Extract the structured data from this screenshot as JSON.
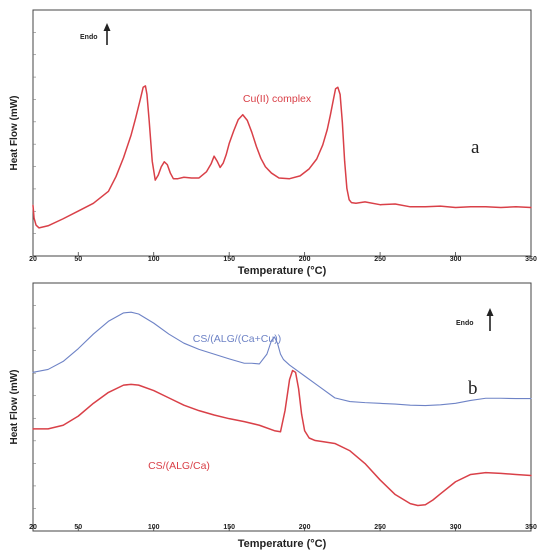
{
  "colors": {
    "red": "#d94048",
    "blue": "#6e83c6"
  },
  "chart_data": [
    {
      "type": "line",
      "panel_label": "a",
      "xlabel": "Temperature (°C)",
      "ylabel": "Heat Flow (mW)",
      "endo_label": "Endo",
      "xlim": [
        20,
        350
      ],
      "xticks": [
        "20",
        "50",
        "100",
        "150",
        "200",
        "250",
        "300",
        "350"
      ],
      "series": [
        {
          "name": "Cu(II) complex",
          "color": "#d94048",
          "x": [
            20,
            20.7,
            22,
            24,
            30,
            40,
            50,
            60,
            70,
            75,
            80,
            85,
            88,
            91,
            93,
            94.5,
            95.5,
            97,
            99,
            101,
            103,
            105,
            107,
            109,
            111,
            113,
            116,
            120,
            125,
            130,
            135,
            138,
            140,
            142,
            144,
            146,
            148,
            150,
            153,
            156,
            159,
            162,
            165,
            168,
            171,
            174,
            178,
            183,
            190,
            197,
            203,
            208,
            212,
            215,
            217,
            219,
            220.5,
            222,
            223.5,
            225,
            226.5,
            228,
            229.5,
            231,
            234,
            240,
            250,
            260,
            270,
            280,
            290,
            300,
            310,
            320,
            330,
            340,
            350
          ],
          "y": [
            0.42,
            0.24,
            0.14,
            0.1,
            0.13,
            0.23,
            0.34,
            0.45,
            0.62,
            0.83,
            1.1,
            1.42,
            1.66,
            1.92,
            2.1,
            2.12,
            2.0,
            1.62,
            1.05,
            0.78,
            0.85,
            0.97,
            1.04,
            1.0,
            0.88,
            0.8,
            0.8,
            0.82,
            0.81,
            0.81,
            0.9,
            1.01,
            1.12,
            1.05,
            0.96,
            1.02,
            1.14,
            1.3,
            1.48,
            1.64,
            1.71,
            1.63,
            1.46,
            1.26,
            1.09,
            0.97,
            0.88,
            0.81,
            0.8,
            0.84,
            0.94,
            1.08,
            1.28,
            1.5,
            1.7,
            1.92,
            2.08,
            2.1,
            2.0,
            1.6,
            1.05,
            0.66,
            0.5,
            0.46,
            0.45,
            0.47,
            0.43,
            0.44,
            0.4,
            0.4,
            0.41,
            0.39,
            0.4,
            0.4,
            0.39,
            0.4,
            0.39
          ]
        }
      ]
    },
    {
      "type": "line",
      "panel_label": "b",
      "xlabel": "Temperature (°C)",
      "ylabel": "Heat Flow (mW)",
      "endo_label": "Endo",
      "xlim": [
        20,
        350
      ],
      "xticks": [
        "20",
        "50",
        "100",
        "150",
        "200",
        "250",
        "300",
        "350"
      ],
      "series": [
        {
          "name": "CS/(ALG/(Ca+Cu))",
          "color": "#6e83c6",
          "x": [
            20,
            30,
            40,
            50,
            60,
            70,
            80,
            85,
            90,
            100,
            110,
            120,
            130,
            140,
            150,
            160,
            165,
            170,
            175,
            178,
            180,
            182,
            184,
            186,
            190,
            200,
            210,
            220,
            230,
            240,
            250,
            260,
            270,
            280,
            290,
            300,
            310,
            320,
            330,
            340,
            350
          ],
          "y": [
            2.55,
            2.63,
            2.85,
            3.2,
            3.6,
            3.95,
            4.18,
            4.2,
            4.15,
            3.9,
            3.6,
            3.35,
            3.18,
            3.05,
            2.92,
            2.8,
            2.8,
            2.78,
            3.05,
            3.42,
            3.52,
            3.35,
            3.05,
            2.9,
            2.75,
            2.45,
            2.15,
            1.85,
            1.75,
            1.72,
            1.7,
            1.68,
            1.65,
            1.64,
            1.66,
            1.7,
            1.78,
            1.84,
            1.84,
            1.83,
            1.83
          ]
        },
        {
          "name": "CS/(ALG/Ca)",
          "color": "#d94048",
          "x": [
            20,
            30,
            40,
            50,
            60,
            70,
            80,
            85,
            90,
            100,
            110,
            120,
            130,
            140,
            150,
            160,
            170,
            180,
            184,
            187,
            190,
            192,
            194,
            196,
            198,
            200,
            203,
            207,
            212,
            220,
            230,
            240,
            250,
            260,
            270,
            275,
            280,
            285,
            290,
            300,
            310,
            320,
            330,
            340,
            350
          ],
          "y": [
            1.0,
            1.0,
            1.1,
            1.35,
            1.7,
            2.0,
            2.2,
            2.22,
            2.2,
            2.05,
            1.85,
            1.65,
            1.5,
            1.38,
            1.28,
            1.2,
            1.1,
            0.95,
            0.92,
            1.5,
            2.35,
            2.6,
            2.55,
            2.1,
            1.4,
            0.95,
            0.75,
            0.68,
            0.65,
            0.6,
            0.4,
            0.05,
            -0.4,
            -0.8,
            -1.05,
            -1.1,
            -1.08,
            -0.95,
            -0.78,
            -0.45,
            -0.25,
            -0.2,
            -0.22,
            -0.25,
            -0.28
          ]
        }
      ]
    }
  ]
}
